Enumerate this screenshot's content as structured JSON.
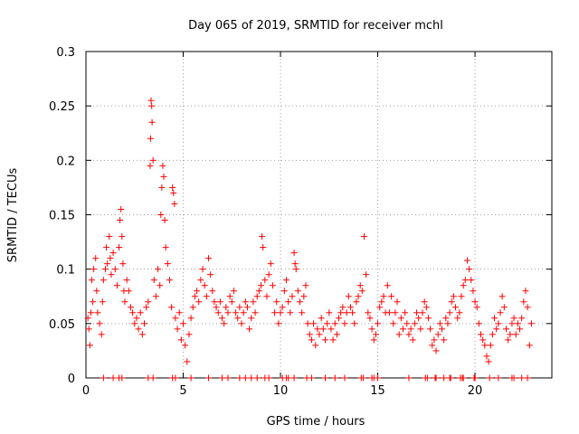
{
  "chart_data": {
    "type": "scatter",
    "title": "Day 065 of 2019, SRMTID for receiver mchl",
    "xlabel": "GPS time / hours",
    "ylabel": "SRMTID / TECUs",
    "xlim": [
      0,
      23.95
    ],
    "ylim": [
      0,
      0.3
    ],
    "xticks": [
      0,
      5,
      10,
      15,
      20
    ],
    "xtick_labels": [
      "0",
      "5",
      "10",
      "15",
      "20"
    ],
    "yticks": [
      0,
      0.05,
      0.1,
      0.15,
      0.2,
      0.25,
      0.3
    ],
    "ytick_labels": [
      "0",
      "0.05",
      "0.1",
      "0.15",
      "0.2",
      "0.25",
      "0.3"
    ],
    "grid": true,
    "legend": "none",
    "marker": "+",
    "color": "#ff0000",
    "series": [
      {
        "name": "SRMTID",
        "points": [
          [
            0.1,
            0.055
          ],
          [
            0.15,
            0.045
          ],
          [
            0.2,
            0.03
          ],
          [
            0.25,
            0.06
          ],
          [
            0.3,
            0.09
          ],
          [
            0.35,
            0.07
          ],
          [
            0.4,
            0.1
          ],
          [
            0.5,
            0.11
          ],
          [
            0.55,
            0.08
          ],
          [
            0.6,
            0.06
          ],
          [
            0.7,
            0.05
          ],
          [
            0.8,
            0.04
          ],
          [
            0.85,
            0.07
          ],
          [
            0.9,
            0.09
          ],
          [
            1.0,
            0.1
          ],
          [
            1.05,
            0.12
          ],
          [
            1.1,
            0.105
          ],
          [
            1.2,
            0.13
          ],
          [
            1.25,
            0.11
          ],
          [
            1.3,
            0.095
          ],
          [
            1.4,
            0.115
          ],
          [
            1.5,
            0.1
          ],
          [
            1.6,
            0.085
          ],
          [
            1.7,
            0.12
          ],
          [
            1.75,
            0.145
          ],
          [
            1.8,
            0.155
          ],
          [
            1.85,
            0.13
          ],
          [
            1.9,
            0.105
          ],
          [
            1.95,
            0.08
          ],
          [
            2.0,
            0.07
          ],
          [
            2.1,
            0.09
          ],
          [
            2.2,
            0.08
          ],
          [
            2.3,
            0.065
          ],
          [
            2.4,
            0.06
          ],
          [
            2.5,
            0.05
          ],
          [
            2.6,
            0.055
          ],
          [
            2.7,
            0.045
          ],
          [
            2.8,
            0.06
          ],
          [
            2.9,
            0.04
          ],
          [
            3.0,
            0.05
          ],
          [
            3.1,
            0.065
          ],
          [
            3.2,
            0.07
          ],
          [
            3.3,
            0.195
          ],
          [
            3.32,
            0.22
          ],
          [
            3.35,
            0.255
          ],
          [
            3.38,
            0.25
          ],
          [
            3.4,
            0.235
          ],
          [
            3.45,
            0.2
          ],
          [
            3.5,
            0.09
          ],
          [
            3.6,
            0.075
          ],
          [
            3.7,
            0.1
          ],
          [
            3.8,
            0.085
          ],
          [
            3.85,
            0.15
          ],
          [
            3.9,
            0.175
          ],
          [
            3.95,
            0.195
          ],
          [
            4.0,
            0.185
          ],
          [
            4.05,
            0.145
          ],
          [
            4.1,
            0.12
          ],
          [
            4.2,
            0.105
          ],
          [
            4.3,
            0.09
          ],
          [
            4.4,
            0.065
          ],
          [
            4.45,
            0.175
          ],
          [
            4.5,
            0.17
          ],
          [
            4.55,
            0.16
          ],
          [
            4.6,
            0.055
          ],
          [
            4.7,
            0.045
          ],
          [
            4.8,
            0.06
          ],
          [
            4.9,
            0.035
          ],
          [
            5.0,
            0.05
          ],
          [
            5.1,
            0.03
          ],
          [
            5.2,
            0.015
          ],
          [
            5.3,
            0.04
          ],
          [
            5.4,
            0.055
          ],
          [
            5.5,
            0.065
          ],
          [
            5.6,
            0.075
          ],
          [
            5.7,
            0.08
          ],
          [
            5.8,
            0.07
          ],
          [
            5.9,
            0.09
          ],
          [
            6.0,
            0.1
          ],
          [
            6.1,
            0.085
          ],
          [
            6.2,
            0.075
          ],
          [
            6.3,
            0.11
          ],
          [
            6.4,
            0.095
          ],
          [
            6.5,
            0.08
          ],
          [
            6.6,
            0.07
          ],
          [
            6.7,
            0.065
          ],
          [
            6.8,
            0.06
          ],
          [
            6.9,
            0.07
          ],
          [
            7.0,
            0.055
          ],
          [
            7.1,
            0.05
          ],
          [
            7.2,
            0.065
          ],
          [
            7.3,
            0.06
          ],
          [
            7.4,
            0.075
          ],
          [
            7.5,
            0.07
          ],
          [
            7.6,
            0.08
          ],
          [
            7.7,
            0.06
          ],
          [
            7.8,
            0.055
          ],
          [
            7.9,
            0.065
          ],
          [
            8.0,
            0.05
          ],
          [
            8.1,
            0.06
          ],
          [
            8.2,
            0.07
          ],
          [
            8.3,
            0.065
          ],
          [
            8.4,
            0.045
          ],
          [
            8.5,
            0.055
          ],
          [
            8.6,
            0.07
          ],
          [
            8.7,
            0.06
          ],
          [
            8.8,
            0.075
          ],
          [
            8.9,
            0.08
          ],
          [
            9.0,
            0.085
          ],
          [
            9.05,
            0.13
          ],
          [
            9.1,
            0.12
          ],
          [
            9.2,
            0.09
          ],
          [
            9.3,
            0.075
          ],
          [
            9.4,
            0.095
          ],
          [
            9.5,
            0.105
          ],
          [
            9.6,
            0.085
          ],
          [
            9.7,
            0.06
          ],
          [
            9.8,
            0.07
          ],
          [
            9.9,
            0.05
          ],
          [
            10.0,
            0.06
          ],
          [
            10.1,
            0.065
          ],
          [
            10.2,
            0.08
          ],
          [
            10.3,
            0.09
          ],
          [
            10.4,
            0.07
          ],
          [
            10.5,
            0.06
          ],
          [
            10.6,
            0.075
          ],
          [
            10.7,
            0.115
          ],
          [
            10.75,
            0.105
          ],
          [
            10.8,
            0.1
          ],
          [
            10.9,
            0.08
          ],
          [
            11.0,
            0.07
          ],
          [
            11.1,
            0.06
          ],
          [
            11.2,
            0.075
          ],
          [
            11.3,
            0.085
          ],
          [
            11.4,
            0.05
          ],
          [
            11.5,
            0.04
          ],
          [
            11.6,
            0.035
          ],
          [
            11.7,
            0.05
          ],
          [
            11.8,
            0.03
          ],
          [
            11.9,
            0.045
          ],
          [
            12.0,
            0.04
          ],
          [
            12.1,
            0.055
          ],
          [
            12.2,
            0.045
          ],
          [
            12.3,
            0.035
          ],
          [
            12.4,
            0.05
          ],
          [
            12.5,
            0.06
          ],
          [
            12.6,
            0.045
          ],
          [
            12.7,
            0.035
          ],
          [
            12.8,
            0.05
          ],
          [
            12.9,
            0.04
          ],
          [
            13.0,
            0.055
          ],
          [
            13.1,
            0.06
          ],
          [
            13.2,
            0.065
          ],
          [
            13.3,
            0.05
          ],
          [
            13.4,
            0.06
          ],
          [
            13.5,
            0.075
          ],
          [
            13.6,
            0.065
          ],
          [
            13.7,
            0.06
          ],
          [
            13.8,
            0.05
          ],
          [
            13.9,
            0.07
          ],
          [
            14.0,
            0.075
          ],
          [
            14.1,
            0.085
          ],
          [
            14.2,
            0.08
          ],
          [
            14.3,
            0.13
          ],
          [
            14.4,
            0.095
          ],
          [
            14.5,
            0.06
          ],
          [
            14.6,
            0.055
          ],
          [
            14.7,
            0.045
          ],
          [
            14.8,
            0.035
          ],
          [
            14.9,
            0.04
          ],
          [
            15.0,
            0.05
          ],
          [
            15.1,
            0.065
          ],
          [
            15.2,
            0.07
          ],
          [
            15.3,
            0.075
          ],
          [
            15.4,
            0.06
          ],
          [
            15.5,
            0.085
          ],
          [
            15.6,
            0.06
          ],
          [
            15.7,
            0.075
          ],
          [
            15.8,
            0.05
          ],
          [
            15.9,
            0.06
          ],
          [
            16.0,
            0.07
          ],
          [
            16.1,
            0.04
          ],
          [
            16.2,
            0.055
          ],
          [
            16.3,
            0.045
          ],
          [
            16.4,
            0.06
          ],
          [
            16.5,
            0.05
          ],
          [
            16.6,
            0.04
          ],
          [
            16.7,
            0.045
          ],
          [
            16.8,
            0.035
          ],
          [
            16.9,
            0.05
          ],
          [
            17.0,
            0.06
          ],
          [
            17.1,
            0.055
          ],
          [
            17.2,
            0.045
          ],
          [
            17.3,
            0.06
          ],
          [
            17.4,
            0.07
          ],
          [
            17.5,
            0.065
          ],
          [
            17.6,
            0.055
          ],
          [
            17.7,
            0.045
          ],
          [
            17.8,
            0.03
          ],
          [
            17.9,
            0.035
          ],
          [
            18.0,
            0.025
          ],
          [
            18.1,
            0.04
          ],
          [
            18.2,
            0.05
          ],
          [
            18.3,
            0.045
          ],
          [
            18.4,
            0.035
          ],
          [
            18.5,
            0.055
          ],
          [
            18.6,
            0.05
          ],
          [
            18.7,
            0.06
          ],
          [
            18.8,
            0.07
          ],
          [
            18.9,
            0.075
          ],
          [
            19.0,
            0.065
          ],
          [
            19.1,
            0.055
          ],
          [
            19.2,
            0.06
          ],
          [
            19.3,
            0.075
          ],
          [
            19.4,
            0.085
          ],
          [
            19.5,
            0.09
          ],
          [
            19.6,
            0.108
          ],
          [
            19.7,
            0.1
          ],
          [
            19.8,
            0.09
          ],
          [
            19.9,
            0.08
          ],
          [
            20.0,
            0.07
          ],
          [
            20.1,
            0.065
          ],
          [
            20.2,
            0.05
          ],
          [
            20.3,
            0.04
          ],
          [
            20.4,
            0.035
          ],
          [
            20.5,
            0.03
          ],
          [
            20.6,
            0.02
          ],
          [
            20.7,
            0.015
          ],
          [
            20.8,
            0.03
          ],
          [
            20.9,
            0.04
          ],
          [
            21.0,
            0.055
          ],
          [
            21.1,
            0.045
          ],
          [
            21.2,
            0.05
          ],
          [
            21.3,
            0.06
          ],
          [
            21.4,
            0.075
          ],
          [
            21.5,
            0.065
          ],
          [
            21.6,
            0.045
          ],
          [
            21.7,
            0.035
          ],
          [
            21.8,
            0.04
          ],
          [
            21.9,
            0.05
          ],
          [
            22.0,
            0.055
          ],
          [
            22.1,
            0.04
          ],
          [
            22.2,
            0.05
          ],
          [
            22.3,
            0.045
          ],
          [
            22.4,
            0.055
          ],
          [
            22.5,
            0.07
          ],
          [
            22.6,
            0.08
          ],
          [
            22.7,
            0.065
          ],
          [
            22.8,
            0.03
          ],
          [
            22.9,
            0.05
          ]
        ]
      }
    ],
    "baseline_marks_x": [
      0.9,
      1.4,
      1.7,
      1.85,
      3.2,
      3.45,
      4.45,
      4.6,
      5.4,
      6.3,
      7.0,
      7.3,
      7.9,
      8.2,
      8.5,
      8.8,
      9.2,
      9.4,
      10.1,
      10.3,
      10.4,
      10.7,
      11.35,
      11.6,
      12.3,
      12.8,
      13.3,
      14.15,
      14.25,
      14.7,
      14.8,
      15.0,
      16.6,
      17.45,
      17.55,
      17.95,
      18.0,
      18.4,
      18.7,
      18.75,
      19.25,
      19.35,
      19.4,
      19.95,
      20.0,
      20.75,
      21.2,
      21.9,
      22.0,
      22.4,
      22.7
    ]
  }
}
